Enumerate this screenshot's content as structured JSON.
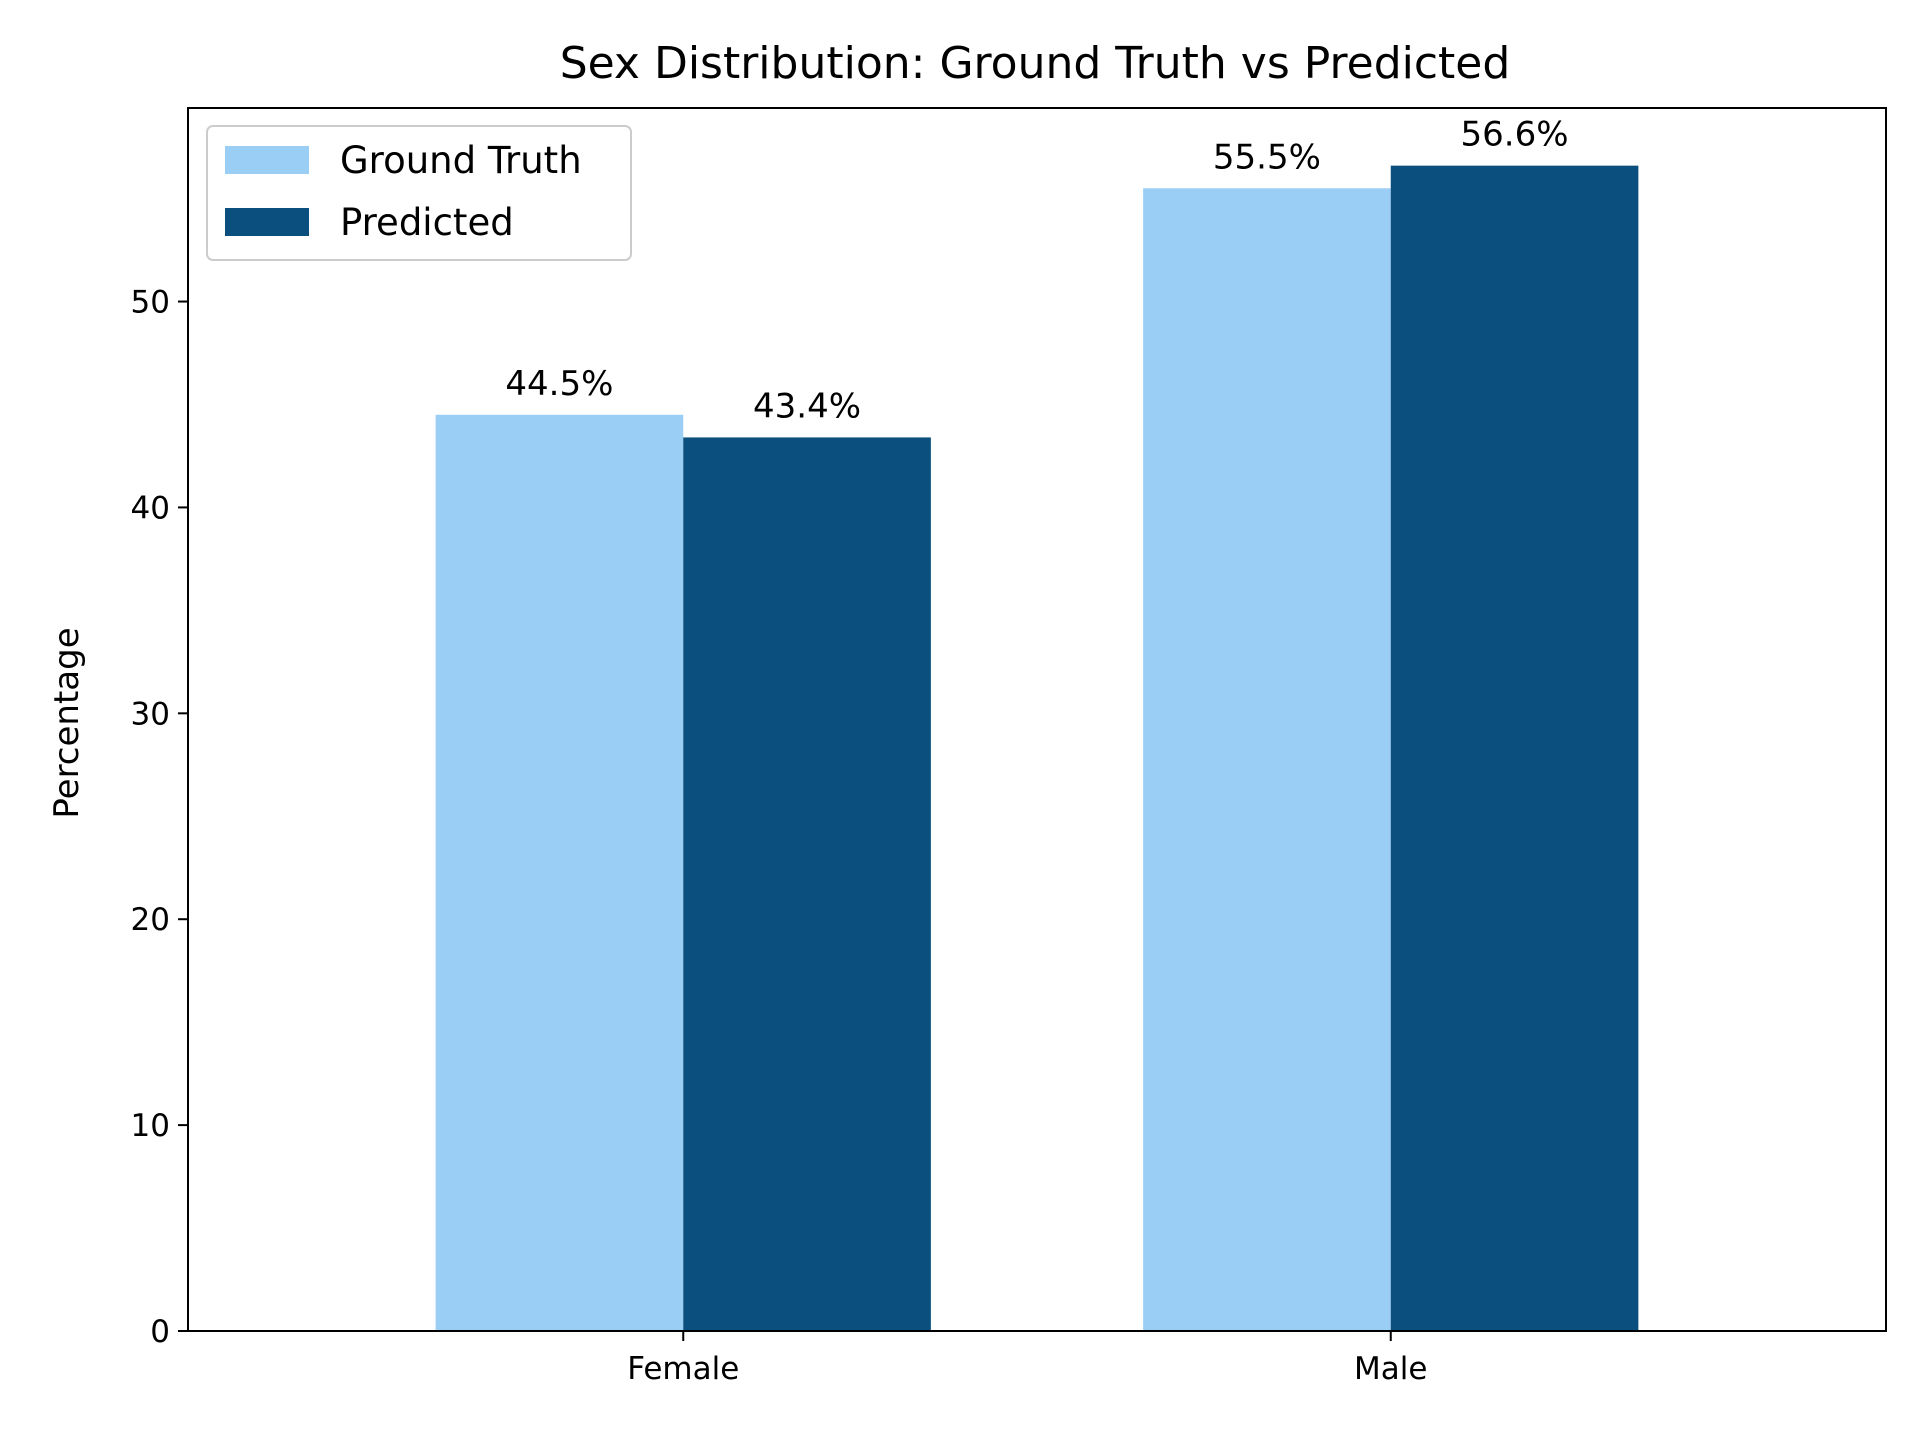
{
  "chart_data": {
    "type": "bar",
    "title": "Sex Distribution: Ground Truth vs Predicted",
    "xlabel": "",
    "ylabel": "Percentage",
    "categories": [
      "Female",
      "Male"
    ],
    "series": [
      {
        "name": "Ground Truth",
        "color": "#9bcef5",
        "values": [
          44.5,
          55.5
        ],
        "labels": [
          "44.5%",
          "55.5%"
        ]
      },
      {
        "name": "Predicted",
        "color": "#0b4f7e",
        "values": [
          43.4,
          56.6
        ],
        "labels": [
          "43.4%",
          "56.6%"
        ]
      }
    ],
    "ylim": [
      0,
      59.4
    ],
    "yticks": [
      0,
      10,
      20,
      30,
      40,
      50
    ],
    "ytick_labels": [
      "0",
      "10",
      "20",
      "30",
      "40",
      "50"
    ],
    "grid": false,
    "legend": "top-left"
  }
}
